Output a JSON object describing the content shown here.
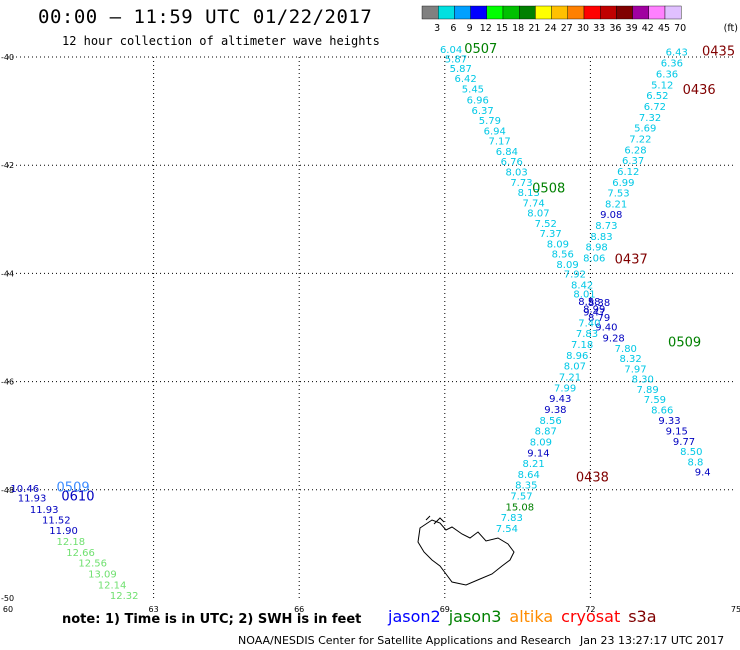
{
  "header": {
    "title": "00:00 – 11:59 UTC 01/22/2017",
    "subtitle": "12 hour collection of altimeter wave heights"
  },
  "colorbar": {
    "ticks": [
      "3",
      "6",
      "9",
      "12",
      "15",
      "18",
      "21",
      "24",
      "27",
      "30",
      "33",
      "36",
      "39",
      "42",
      "45",
      "70"
    ],
    "unit": "(ft)",
    "colors": [
      "#808080",
      "#00e0e0",
      "#00a0ff",
      "#0000ff",
      "#00ff00",
      "#00c000",
      "#008000",
      "#ffff00",
      "#ffc000",
      "#ff8000",
      "#ff0000",
      "#c00000",
      "#800000",
      "#a000a0",
      "#ff80ff",
      "#e0c0ff"
    ]
  },
  "footer": {
    "note": "note: 1) Time is in UTC; 2) SWH is in feet",
    "legend": [
      {
        "label": "jason2",
        "color": "#0000ff"
      },
      {
        "label": "jason3",
        "color": "#008000"
      },
      {
        "label": "altika",
        "color": "#ff8c00"
      },
      {
        "label": "cryosat",
        "color": "#ff0000"
      },
      {
        "label": "s3a",
        "color": "#800000"
      }
    ],
    "credit": "NOAA/NESDIS Center for Satellite Applications and Research",
    "timestamp": "Jan 23 13:27:17 UTC 2017"
  },
  "chart_data": {
    "type": "scatter",
    "xlim": [
      60,
      75
    ],
    "ylim": [
      -50,
      -40
    ],
    "xticks": [
      "60",
      "63",
      "66",
      "69",
      "72",
      "75"
    ],
    "yticks": [
      "-40",
      "-42",
      "-44",
      "-46",
      "-48",
      "-50"
    ],
    "grid": true,
    "palette": {
      "cyan": "#00c8e6",
      "lightblue": "#3c8cff",
      "blue": "#0000c0",
      "green": "#008000",
      "lightgreen": "#70e070",
      "red": "#800000"
    },
    "tracks": [
      {
        "label": "0507",
        "label_color": "green",
        "label_pos": [
          69.4,
          -39.93
        ],
        "points": [
          [
            68.9,
            -39.93,
            "6.04",
            "cyan"
          ],
          [
            69.0,
            -40.1,
            "5.87",
            "cyan"
          ],
          [
            69.1,
            -40.28,
            "5.87",
            "cyan"
          ],
          [
            69.2,
            -40.46,
            "6.42",
            "cyan"
          ],
          [
            69.35,
            -40.66,
            "5.45",
            "cyan"
          ],
          [
            69.45,
            -40.86,
            "6.96",
            "cyan"
          ],
          [
            69.55,
            -41.05,
            "6.37",
            "cyan"
          ],
          [
            69.7,
            -41.24,
            "5.79",
            "cyan"
          ],
          [
            69.8,
            -41.43,
            "6.94",
            "cyan"
          ],
          [
            69.9,
            -41.62,
            "7.17",
            "cyan"
          ],
          [
            70.05,
            -41.81,
            "6.84",
            "cyan"
          ],
          [
            70.15,
            -42.0,
            "6.76",
            "cyan"
          ],
          [
            70.25,
            -42.19,
            "8.03",
            "cyan"
          ],
          [
            70.35,
            -42.38,
            "7.73",
            "cyan"
          ],
          [
            70.5,
            -42.57,
            "8.13",
            "cyan"
          ],
          [
            70.6,
            -42.76,
            "7.74",
            "cyan"
          ],
          [
            70.7,
            -42.95,
            "8.07",
            "cyan"
          ],
          [
            70.85,
            -43.14,
            "7.52",
            "cyan"
          ],
          [
            70.95,
            -43.33,
            "7.37",
            "cyan"
          ],
          [
            71.1,
            -43.52,
            "8.09",
            "cyan"
          ],
          [
            71.2,
            -43.71,
            "8.56",
            "cyan"
          ],
          [
            71.3,
            -43.9,
            "8.09",
            "cyan"
          ],
          [
            71.45,
            -44.08,
            "7.92",
            "cyan"
          ],
          [
            71.6,
            -44.28,
            "8.42",
            "cyan"
          ],
          [
            71.65,
            -44.45,
            "8.01",
            "cyan"
          ],
          [
            71.75,
            -44.58,
            "8.58",
            "blue"
          ],
          [
            71.85,
            -44.72,
            "8.99",
            "blue"
          ],
          [
            71.95,
            -44.88,
            "8.79",
            "blue"
          ],
          [
            72.1,
            -45.06,
            "9.40",
            "blue"
          ],
          [
            72.25,
            -45.26,
            "9.28",
            "blue"
          ]
        ]
      },
      {
        "label": "0508",
        "label_color": "green",
        "label_pos": [
          70.8,
          -42.5
        ],
        "points": []
      },
      {
        "label": "0509",
        "label_color": "green",
        "label_pos": [
          73.6,
          -45.35
        ],
        "points": [
          [
            72.5,
            -45.45,
            "7.80",
            "cyan"
          ],
          [
            72.6,
            -45.64,
            "8.32",
            "cyan"
          ],
          [
            72.7,
            -45.83,
            "7.97",
            "cyan"
          ],
          [
            72.85,
            -46.02,
            "8.30",
            "cyan"
          ],
          [
            72.95,
            -46.21,
            "7.89",
            "cyan"
          ],
          [
            73.1,
            -46.4,
            "7.59",
            "cyan"
          ],
          [
            73.25,
            -46.59,
            "8.66",
            "cyan"
          ],
          [
            73.4,
            -46.78,
            "9.33",
            "blue"
          ],
          [
            73.55,
            -46.98,
            "9.15",
            "blue"
          ],
          [
            73.7,
            -47.17,
            "9.77",
            "blue"
          ],
          [
            73.85,
            -47.36,
            "8.50",
            "cyan"
          ],
          [
            74.0,
            -47.55,
            "8.8",
            "cyan"
          ],
          [
            74.15,
            -47.74,
            "9.4",
            "blue"
          ]
        ]
      },
      {
        "label": "0435",
        "label_color": "red",
        "label_pos": [
          74.3,
          -39.97
        ],
        "points": [
          [
            73.55,
            -39.97,
            "6.43",
            "cyan"
          ],
          [
            73.45,
            -40.18,
            "6.36",
            "cyan"
          ],
          [
            73.35,
            -40.38,
            "6.36",
            "cyan"
          ],
          [
            73.25,
            -40.58,
            "5.12",
            "cyan"
          ],
          [
            73.15,
            -40.78,
            "6.52",
            "cyan"
          ],
          [
            73.1,
            -40.98,
            "6.72",
            "cyan"
          ],
          [
            73.0,
            -41.18,
            "7.32",
            "cyan"
          ],
          [
            72.9,
            -41.38,
            "5.69",
            "cyan"
          ],
          [
            72.8,
            -41.58,
            "7.22",
            "cyan"
          ],
          [
            72.7,
            -41.78,
            "6.28",
            "cyan"
          ],
          [
            72.65,
            -41.98,
            "6.37",
            "cyan"
          ],
          [
            72.55,
            -42.18,
            "6.12",
            "cyan"
          ],
          [
            72.45,
            -42.38,
            "6.99",
            "cyan"
          ],
          [
            72.35,
            -42.58,
            "7.53",
            "cyan"
          ],
          [
            72.3,
            -42.78,
            "8.21",
            "cyan"
          ],
          [
            72.2,
            -42.98,
            "9.08",
            "blue"
          ],
          [
            72.1,
            -43.18,
            "8.73",
            "cyan"
          ],
          [
            72.0,
            -43.38,
            "8.83",
            "cyan"
          ],
          [
            71.9,
            -43.58,
            "8.98",
            "cyan"
          ],
          [
            71.85,
            -43.78,
            "8.06",
            "cyan"
          ]
        ]
      },
      {
        "label": "0436",
        "label_color": "red",
        "label_pos": [
          73.9,
          -40.68
        ],
        "points": []
      },
      {
        "label": "0437",
        "label_color": "red",
        "label_pos": [
          72.5,
          -43.82
        ],
        "points": []
      },
      {
        "label": "0438",
        "label_color": "red",
        "label_pos": [
          71.7,
          -47.85
        ],
        "points": [
          [
            71.95,
            -44.6,
            "8.38",
            "blue"
          ],
          [
            71.85,
            -44.78,
            "9.47",
            "blue"
          ],
          [
            71.75,
            -44.98,
            "7.40",
            "cyan"
          ],
          [
            71.7,
            -45.18,
            "7.83",
            "cyan"
          ],
          [
            71.6,
            -45.38,
            "7.18",
            "cyan"
          ],
          [
            71.5,
            -45.58,
            "8.96",
            "cyan"
          ],
          [
            71.45,
            -45.78,
            "8.07",
            "cyan"
          ],
          [
            71.35,
            -45.98,
            "7.21",
            "cyan"
          ],
          [
            71.25,
            -46.18,
            "7.99",
            "cyan"
          ],
          [
            71.15,
            -46.38,
            "9.43",
            "blue"
          ],
          [
            71.05,
            -46.58,
            "9.38",
            "blue"
          ],
          [
            70.95,
            -46.78,
            "8.56",
            "cyan"
          ],
          [
            70.85,
            -46.98,
            "8.87",
            "cyan"
          ],
          [
            70.75,
            -47.18,
            "8.09",
            "cyan"
          ],
          [
            70.7,
            -47.38,
            "9.14",
            "blue"
          ],
          [
            70.6,
            -47.58,
            "8.21",
            "cyan"
          ],
          [
            70.5,
            -47.78,
            "8.64",
            "cyan"
          ],
          [
            70.45,
            -47.98,
            "8.35",
            "cyan"
          ],
          [
            70.35,
            -48.18,
            "7.57",
            "cyan"
          ],
          [
            70.25,
            -48.38,
            "15.08",
            "green"
          ],
          [
            70.15,
            -48.58,
            "7.83",
            "cyan"
          ],
          [
            70.05,
            -48.78,
            "7.54",
            "cyan"
          ]
        ]
      },
      {
        "label": "0509",
        "label_color": "lightblue",
        "label_pos": [
          61.0,
          -48.03
        ],
        "points": [
          [
            60.05,
            -48.04,
            "10.46",
            "blue"
          ],
          [
            60.2,
            -48.22,
            "11.93",
            "blue"
          ],
          [
            60.45,
            -48.43,
            "11.93",
            "blue"
          ],
          [
            60.7,
            -48.62,
            "11.52",
            "blue"
          ],
          [
            60.85,
            -48.82,
            "11.90",
            "blue"
          ],
          [
            61.0,
            -49.02,
            "12.18",
            "lightgreen"
          ],
          [
            61.2,
            -49.22,
            "12.66",
            "lightgreen"
          ],
          [
            61.45,
            -49.42,
            "12.56",
            "lightgreen"
          ],
          [
            61.65,
            -49.62,
            "13.09",
            "lightgreen"
          ],
          [
            61.85,
            -49.82,
            "12.14",
            "lightgreen"
          ],
          [
            62.1,
            -50.02,
            "12.32",
            "lightgreen"
          ]
        ]
      },
      {
        "label": "0610",
        "label_color": "blue",
        "label_pos": [
          61.1,
          -48.2
        ],
        "points": []
      }
    ]
  }
}
